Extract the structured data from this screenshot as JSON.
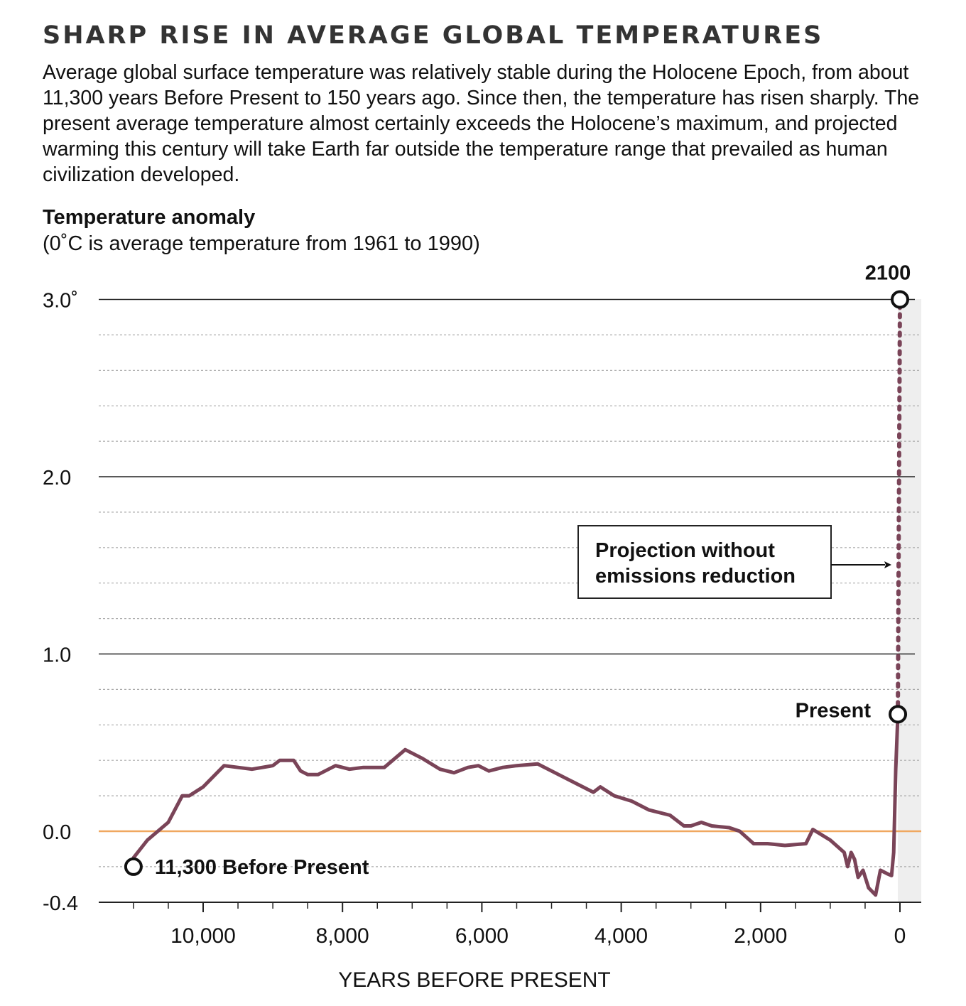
{
  "title": "SHARP RISE IN AVERAGE GLOBAL TEMPERATURES",
  "description": "Average global surface temperature was relatively stable during the Holocene Epoch, from about 11,300 years Before Present to 150 years ago. Since then, the temperature has risen sharply. The present average temperature almost certainly exceeds the Holocene’s maximum, and projected warming this century will take Earth far outside the temperature range that prevailed as human civilization developed.",
  "colors": {
    "series": "#7a4458",
    "zero_line": "#f0a860",
    "gridline": "#222222",
    "minor_grid": "#aaaaaa",
    "shaded_band": "#eeeeee"
  },
  "chart_data": {
    "type": "line",
    "ytitle": "Temperature anomaly",
    "ysubtitle": "(0˚C is average temperature from 1961 to 1990)",
    "xlabel": "YEARS BEFORE PRESENT",
    "x_reversed": true,
    "xlim": [
      11300,
      -30
    ],
    "ylim": [
      -0.4,
      3.0
    ],
    "x_ticks": [
      10000,
      8000,
      6000,
      4000,
      2000,
      0
    ],
    "x_tick_labels": [
      "10,000",
      "8,000",
      "6,000",
      "4,000",
      "2,000",
      "0"
    ],
    "y_ticks": [
      3.0,
      2.0,
      1.0,
      0.0,
      -0.4
    ],
    "y_tick_labels": [
      "3.0˚",
      "2.0",
      "1.0",
      "0.0",
      "-0.4"
    ],
    "minor_y_grid_step": 0.2,
    "grid": true,
    "series": [
      {
        "x": [
          11000,
          10800,
          10500,
          10300,
          10200,
          10000,
          9700,
          9500,
          9300,
          9000,
          8900,
          8700,
          8600,
          8500,
          8350,
          8100,
          7900,
          7700,
          7400,
          7100,
          7000,
          6850,
          6600,
          6400,
          6200,
          6050,
          5900,
          5700,
          5500,
          5200,
          5000,
          4800,
          4600,
          4400,
          4300,
          4100,
          3850,
          3600,
          3300,
          3100,
          3000,
          2850,
          2700,
          2450,
          2300,
          2100,
          1900,
          1650,
          1350,
          1250,
          1000,
          800,
          750,
          700,
          650,
          600,
          530,
          450,
          350,
          280,
          180,
          120,
          90,
          60,
          30
        ],
        "values": [
          -0.15,
          -0.05,
          0.05,
          0.2,
          0.2,
          0.25,
          0.37,
          0.36,
          0.35,
          0.37,
          0.4,
          0.4,
          0.34,
          0.32,
          0.32,
          0.37,
          0.35,
          0.36,
          0.36,
          0.46,
          0.44,
          0.41,
          0.35,
          0.33,
          0.36,
          0.37,
          0.34,
          0.36,
          0.37,
          0.38,
          0.34,
          0.3,
          0.26,
          0.22,
          0.25,
          0.2,
          0.17,
          0.12,
          0.09,
          0.03,
          0.03,
          0.05,
          0.03,
          0.02,
          0.0,
          -0.07,
          -0.07,
          -0.08,
          -0.07,
          0.01,
          -0.05,
          -0.12,
          -0.2,
          -0.12,
          -0.16,
          -0.26,
          -0.22,
          -0.32,
          -0.36,
          -0.22,
          -0.24,
          -0.25,
          -0.12,
          0.35,
          0.66
        ]
      }
    ],
    "projection": {
      "x": [
        30,
        0
      ],
      "values": [
        0.66,
        3.0
      ],
      "label": "Projection without emissions reduction"
    },
    "annotations": [
      {
        "label": "11,300 Before Present",
        "x": 11000,
        "value": -0.2
      },
      {
        "label": "Present",
        "x": 30,
        "value": 0.66
      },
      {
        "label": "2100",
        "x": 0,
        "value": 3.0
      }
    ]
  }
}
